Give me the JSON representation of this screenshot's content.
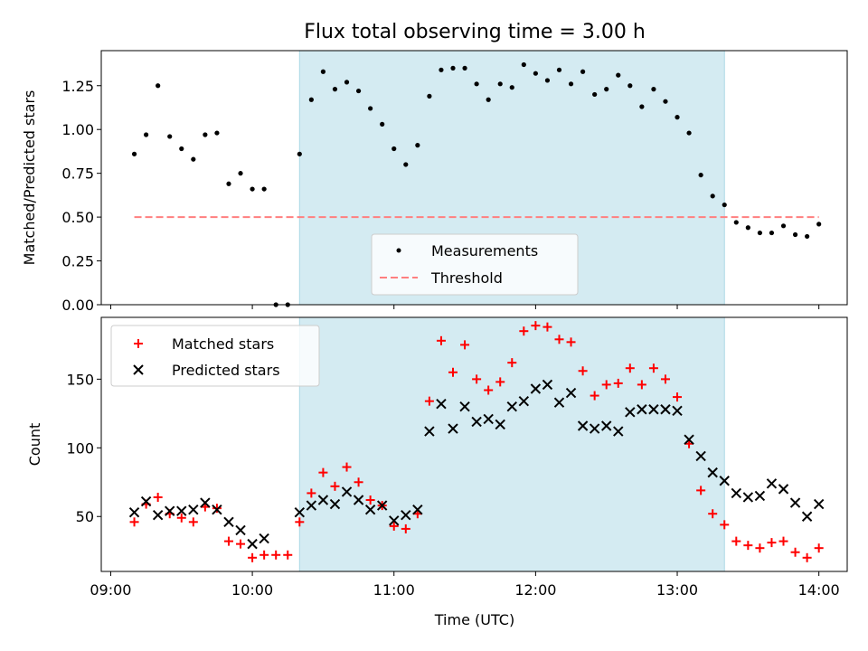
{
  "chart_data": [
    {
      "type": "scatter",
      "title": "Flux total observing time = 3.00 h",
      "xlabel": "",
      "ylabel": "Matched/Predicted stars",
      "ylim": [
        0.0,
        1.45
      ],
      "yticks": [
        "0.00",
        "0.25",
        "0.50",
        "0.75",
        "1.00",
        "1.25"
      ],
      "highlight_span": {
        "from": "10:20",
        "to": "13:20",
        "color": "#add8e6"
      },
      "legend_position": "lower center",
      "series": [
        {
          "name": "Measurements",
          "marker": "dot",
          "color": "#000000",
          "x": [
            "09:10",
            "09:15",
            "09:20",
            "09:25",
            "09:30",
            "09:35",
            "09:40",
            "09:45",
            "09:50",
            "09:55",
            "10:00",
            "10:05",
            "10:10",
            "10:15",
            "10:20",
            "10:25",
            "10:30",
            "10:35",
            "10:40",
            "10:45",
            "10:50",
            "10:55",
            "11:00",
            "11:05",
            "11:10",
            "11:15",
            "11:20",
            "11:25",
            "11:30",
            "11:35",
            "11:40",
            "11:45",
            "11:50",
            "11:55",
            "12:00",
            "12:05",
            "12:10",
            "12:15",
            "12:20",
            "12:25",
            "12:30",
            "12:35",
            "12:40",
            "12:45",
            "12:50",
            "12:55",
            "13:00",
            "13:05",
            "13:10",
            "13:15",
            "13:20",
            "13:25",
            "13:30",
            "13:35",
            "13:40",
            "13:45",
            "13:50",
            "13:55",
            "14:00"
          ],
          "values": [
            0.86,
            0.97,
            1.25,
            0.96,
            0.89,
            0.83,
            0.97,
            0.98,
            0.69,
            0.75,
            0.66,
            0.66,
            0.0,
            0.0,
            0.86,
            1.17,
            1.33,
            1.23,
            1.27,
            1.22,
            1.12,
            1.03,
            0.89,
            0.8,
            0.91,
            1.19,
            1.34,
            1.35,
            1.35,
            1.26,
            1.17,
            1.26,
            1.24,
            1.37,
            1.32,
            1.28,
            1.34,
            1.26,
            1.33,
            1.2,
            1.23,
            1.31,
            1.25,
            1.13,
            1.23,
            1.16,
            1.07,
            0.98,
            0.74,
            0.62,
            0.57,
            0.47,
            0.44,
            0.41,
            0.41,
            0.45,
            0.4,
            0.39,
            0.46
          ]
        },
        {
          "name": "Threshold",
          "marker": "dashed-line",
          "color": "#ff7f7f",
          "x": [
            "09:10",
            "14:00"
          ],
          "values": [
            0.5,
            0.5
          ]
        }
      ]
    },
    {
      "type": "scatter",
      "title": "",
      "xlabel": "Time (UTC)",
      "ylabel": "Count",
      "ylim": [
        10,
        195
      ],
      "yticks": [
        "50",
        "100",
        "150"
      ],
      "xticks": [
        "09:00",
        "10:00",
        "11:00",
        "12:00",
        "13:00",
        "14:00"
      ],
      "xlim": [
        "08:56",
        "14:12"
      ],
      "highlight_span": {
        "from": "10:20",
        "to": "13:20",
        "color": "#add8e6"
      },
      "legend_position": "upper left",
      "x": [
        "09:10",
        "09:15",
        "09:20",
        "09:25",
        "09:30",
        "09:35",
        "09:40",
        "09:45",
        "09:50",
        "09:55",
        "10:00",
        "10:05",
        "10:10",
        "10:15",
        "10:20",
        "10:25",
        "10:30",
        "10:35",
        "10:40",
        "10:45",
        "10:50",
        "10:55",
        "11:00",
        "11:05",
        "11:10",
        "11:15",
        "11:20",
        "11:25",
        "11:30",
        "11:35",
        "11:40",
        "11:45",
        "11:50",
        "11:55",
        "12:00",
        "12:05",
        "12:10",
        "12:15",
        "12:20",
        "12:25",
        "12:30",
        "12:35",
        "12:40",
        "12:45",
        "12:50",
        "12:55",
        "13:00",
        "13:05",
        "13:10",
        "13:15",
        "13:20",
        "13:25",
        "13:30",
        "13:35",
        "13:40",
        "13:45",
        "13:50",
        "13:55",
        "14:00"
      ],
      "series": [
        {
          "name": "Matched stars",
          "marker": "plus",
          "color": "#ff0000",
          "values": [
            46,
            59,
            64,
            52,
            49,
            46,
            57,
            56,
            32,
            30,
            20,
            22,
            22,
            22,
            46,
            67,
            82,
            72,
            86,
            75,
            62,
            58,
            43,
            41,
            52,
            134,
            178,
            155,
            175,
            150,
            142,
            148,
            162,
            185,
            189,
            188,
            179,
            177,
            156,
            138,
            146,
            147,
            158,
            146,
            158,
            150,
            137,
            103,
            69,
            52,
            44,
            32,
            29,
            27,
            31,
            32,
            24,
            20,
            27
          ]
        },
        {
          "name": "Predicted stars",
          "marker": "x",
          "color": "#000000",
          "values": [
            53,
            61,
            51,
            54,
            54,
            55,
            60,
            55,
            46,
            40,
            30,
            34,
            null,
            null,
            53,
            58,
            62,
            59,
            68,
            62,
            55,
            58,
            47,
            51,
            55,
            112,
            132,
            114,
            130,
            119,
            121,
            117,
            130,
            134,
            143,
            146,
            133,
            140,
            116,
            114,
            116,
            112,
            126,
            128,
            128,
            128,
            127,
            106,
            94,
            82,
            76,
            67,
            64,
            65,
            74,
            70,
            60,
            50,
            59
          ]
        }
      ]
    }
  ]
}
